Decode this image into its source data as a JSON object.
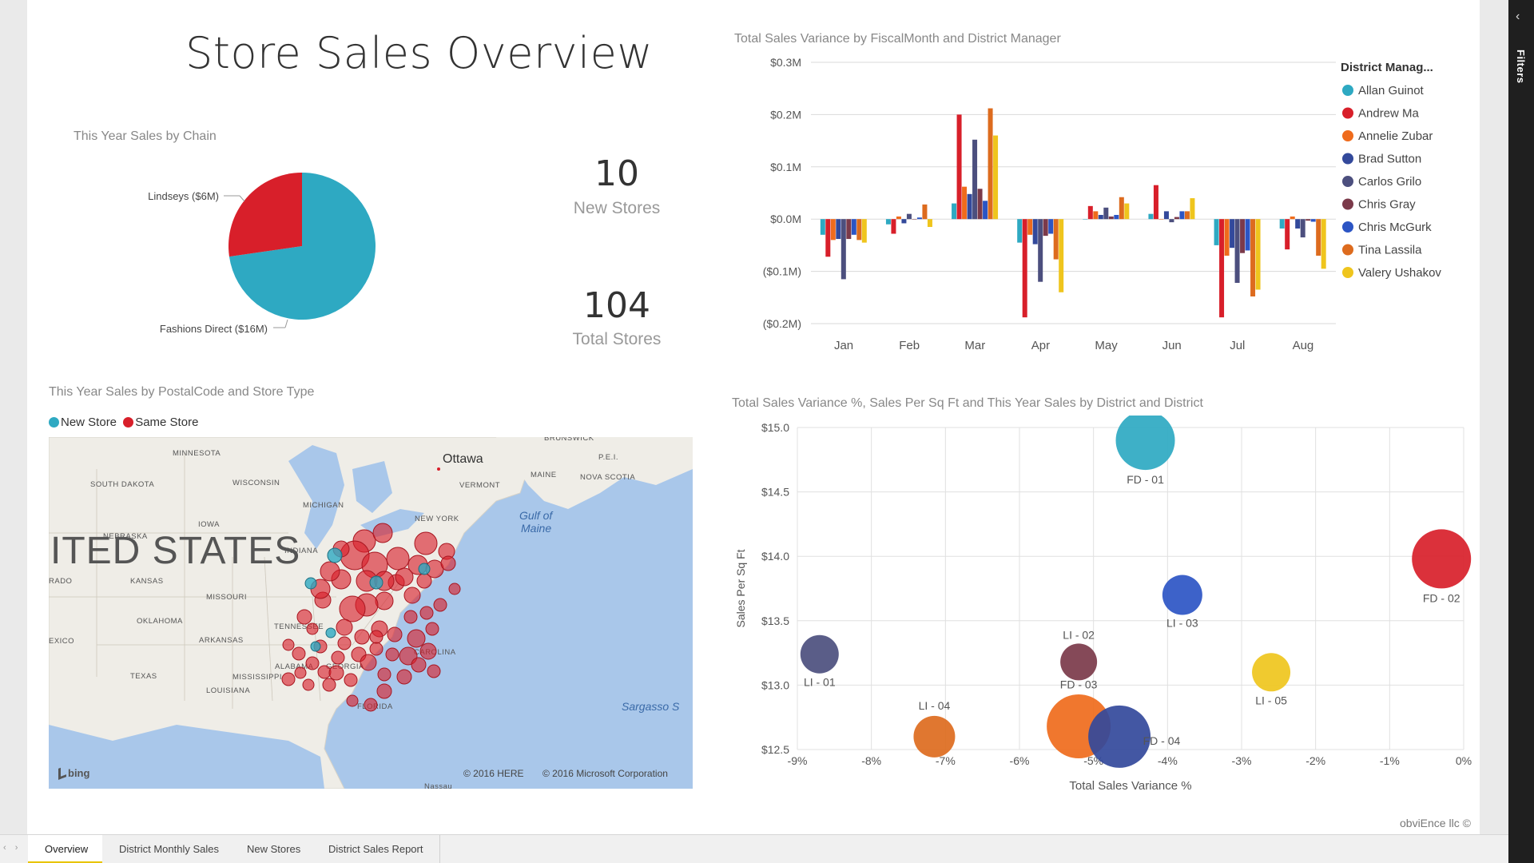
{
  "report": {
    "title": "Store Sales Overview",
    "credit": "obviEnce llc ©"
  },
  "filters_pane": {
    "label": "Filters",
    "toggle_icon": "chevron-left-icon"
  },
  "tabs": [
    {
      "label": "Overview",
      "active": true
    },
    {
      "label": "District Monthly Sales",
      "active": false
    },
    {
      "label": "New Stores",
      "active": false
    },
    {
      "label": "District Sales Report",
      "active": false
    }
  ],
  "kpis": {
    "new_stores": {
      "value": "10",
      "label": "New Stores"
    },
    "total_stores": {
      "value": "104",
      "label": "Total Stores"
    }
  },
  "colors": {
    "teal": "#2ea9c2",
    "red": "#d81f2a",
    "orange": "#ef6b1c",
    "navy": "#33499b",
    "slate": "#4c4f7e",
    "maroon": "#7b3a4a",
    "blue": "#2c55c4",
    "rust": "#dd6b1e",
    "yellow": "#efc51d"
  },
  "pie": {
    "title": "This Year Sales by Chain",
    "chart_data": {
      "type": "pie",
      "slices": [
        {
          "label": "Fashions Direct ($16M)",
          "value": 16,
          "color": "#2ea9c2"
        },
        {
          "label": "Lindseys ($6M)",
          "value": 6,
          "color": "#d81f2a"
        }
      ]
    }
  },
  "bar": {
    "title": "Total Sales Variance by FiscalMonth and District Manager",
    "legend_title": "District Manag...",
    "chart_data": {
      "type": "bar",
      "categories": [
        "Jan",
        "Feb",
        "Mar",
        "Apr",
        "May",
        "Jun",
        "Jul",
        "Aug"
      ],
      "yticks": [
        "$0.3M",
        "$0.2M",
        "$0.1M",
        "$0.0M",
        "($0.1M)",
        "($0.2M)"
      ],
      "ylim": [
        -0.2,
        0.3
      ],
      "legend": "right",
      "series": [
        {
          "name": "Allan Guinot",
          "color": "#2ea9c2",
          "values": [
            -0.03,
            -0.01,
            0.03,
            -0.045,
            0.0,
            0.01,
            -0.05,
            -0.018
          ]
        },
        {
          "name": "Andrew Ma",
          "color": "#d81f2a",
          "values": [
            -0.072,
            -0.028,
            0.2,
            -0.188,
            0.025,
            0.065,
            -0.188,
            -0.058
          ]
        },
        {
          "name": "Annelie Zubar",
          "color": "#ef6b1c",
          "values": [
            -0.04,
            0.005,
            0.062,
            -0.03,
            0.015,
            0.0,
            -0.07,
            0.005
          ]
        },
        {
          "name": "Brad Sutton",
          "color": "#33499b",
          "values": [
            -0.038,
            -0.008,
            0.048,
            -0.048,
            0.008,
            0.015,
            -0.055,
            -0.018
          ]
        },
        {
          "name": "Carlos Grilo",
          "color": "#4c4f7e",
          "values": [
            -0.115,
            0.01,
            0.152,
            -0.12,
            0.022,
            -0.006,
            -0.122,
            -0.035
          ]
        },
        {
          "name": "Chris Gray",
          "color": "#7b3a4a",
          "values": [
            -0.038,
            0.0,
            0.058,
            -0.032,
            0.005,
            0.004,
            -0.065,
            -0.003
          ]
        },
        {
          "name": "Chris McGurk",
          "color": "#2c55c4",
          "values": [
            -0.03,
            0.003,
            0.035,
            -0.028,
            0.008,
            0.015,
            -0.06,
            -0.005
          ]
        },
        {
          "name": "Tina Lassila",
          "color": "#dd6b1e",
          "values": [
            -0.04,
            0.028,
            0.212,
            -0.077,
            0.042,
            0.015,
            -0.148,
            -0.07
          ]
        },
        {
          "name": "Valery Ushakov",
          "color": "#efc51d",
          "values": [
            -0.045,
            -0.015,
            0.16,
            -0.14,
            0.03,
            0.04,
            -0.135,
            -0.095
          ]
        }
      ]
    }
  },
  "map": {
    "title": "This Year Sales by PostalCode and Store Type",
    "legend": [
      {
        "label": "New Store",
        "color": "#2ea9c2"
      },
      {
        "label": "Same Store",
        "color": "#d81f2a"
      }
    ],
    "labels": {
      "country": "ITED STATES",
      "ottawa": "Ottawa",
      "gulf": "Gulf of Maine",
      "sargasso": "Sargasso S",
      "states": [
        "MINNESOTA",
        "SOUTH DAKOTA",
        "WISCONSIN",
        "MICHIGAN",
        "IOWA",
        "NEBRASKA",
        "INDIANA",
        "KANSAS",
        "MISSOURI",
        "OKLAHOMA",
        "ARKANSAS",
        "TENNESSEE",
        "TEXAS",
        "MISSISSIPPI",
        "ALABAMA",
        "GEORGIA",
        "LOUISIANA",
        "FLORIDA",
        "CAROLINA",
        "NEW YORK",
        "VERMONT",
        "MAINE",
        "NOVA SCOTIA",
        "P.E.I.",
        "BRUNSWICK",
        "RADO",
        "EXICO",
        "Nassau"
      ],
      "copyright_here": "© 2016 HERE",
      "copyright_ms": "© 2016 Microsoft Corporation",
      "bing": "bing"
    }
  },
  "scatter": {
    "title": "Total Sales Variance %, Sales Per Sq Ft and This Year Sales by District and District",
    "chart_data": {
      "type": "scatter",
      "xlabel": "Total Sales Variance %",
      "ylabel": "Sales Per Sq Ft",
      "xlim": [
        -9,
        0
      ],
      "ylim": [
        12.5,
        15.0
      ],
      "xticks": [
        "-9%",
        "-8%",
        "-7%",
        "-6%",
        "-5%",
        "-4%",
        "-3%",
        "-2%",
        "-1%",
        "0%"
      ],
      "yticks": [
        "$15.0",
        "$14.5",
        "$14.0",
        "$13.5",
        "$13.0",
        "$12.5"
      ],
      "points": [
        {
          "label": "FD - 01",
          "x": -4.3,
          "y": 14.9,
          "size": 37,
          "color": "#2ea9c2"
        },
        {
          "label": "FD - 02",
          "x": -0.3,
          "y": 13.98,
          "size": 37,
          "color": "#d81f2a"
        },
        {
          "label": "LI - 03",
          "x": -3.8,
          "y": 13.7,
          "size": 25,
          "color": "#2c55c4"
        },
        {
          "label": "LI - 01",
          "x": -8.7,
          "y": 13.24,
          "size": 24,
          "color": "#4c4f7e"
        },
        {
          "label": "LI - 02",
          "x": -5.2,
          "y": 13.18,
          "size": 23,
          "color": "#7b3a4a"
        },
        {
          "label": "FD - 03",
          "x": -5.2,
          "y": 12.68,
          "size": 40,
          "color": "#ef6b1c"
        },
        {
          "label": "FD - 04",
          "x": -4.65,
          "y": 12.6,
          "size": 39,
          "color": "#33499b"
        },
        {
          "label": "LI - 04",
          "x": -7.15,
          "y": 12.6,
          "size": 26,
          "color": "#dd6b1e"
        },
        {
          "label": "LI - 05",
          "x": -2.6,
          "y": 13.1,
          "size": 24,
          "color": "#efc51d"
        }
      ]
    }
  }
}
